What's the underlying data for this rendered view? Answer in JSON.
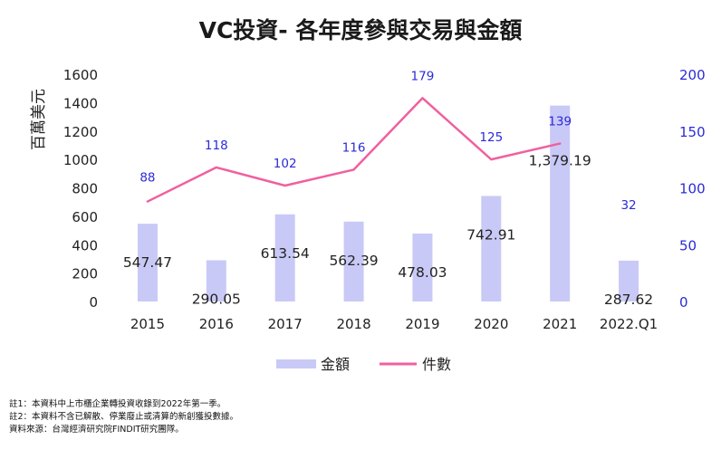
{
  "chart_data": {
    "type": "bar+line",
    "title": "VC投資-  各年度參與交易與金額",
    "ylabel_left": "百萬美元",
    "ylabel_right": "",
    "categories": [
      "2015",
      "2016",
      "2017",
      "2018",
      "2019",
      "2020",
      "2021",
      "2022.Q1"
    ],
    "left_axis": {
      "min": 0,
      "max": 1600,
      "step": 200
    },
    "right_axis": {
      "min": 0,
      "max": 200,
      "step": 50
    },
    "grid": false,
    "legend_position": "bottom",
    "series": [
      {
        "name": "金額",
        "type": "bar",
        "axis": "left",
        "color": "#c9c9f7",
        "values": [
          547.47,
          290.05,
          613.54,
          562.39,
          478.03,
          742.91,
          1379.19,
          287.62
        ],
        "labels": [
          "547.47",
          "290.05",
          "613.54",
          "562.39",
          "478.03",
          "742.91",
          "1,379.19",
          "287.62"
        ]
      },
      {
        "name": "件數",
        "type": "line",
        "axis": "right",
        "color": "#f0609e",
        "label_color": "#2b2bd8",
        "values": [
          88,
          118,
          102,
          116,
          179,
          125,
          139,
          32
        ],
        "line_points": 7
      }
    ]
  },
  "notes": [
    "註1：本資料中上市櫃企業轉投資收錄到2022年第一季。",
    "註2：本資料不含已解散、停業廢止或清算的新創獲投數據。",
    "資料來源：台灣經濟研究院FINDIT研究團隊。"
  ]
}
